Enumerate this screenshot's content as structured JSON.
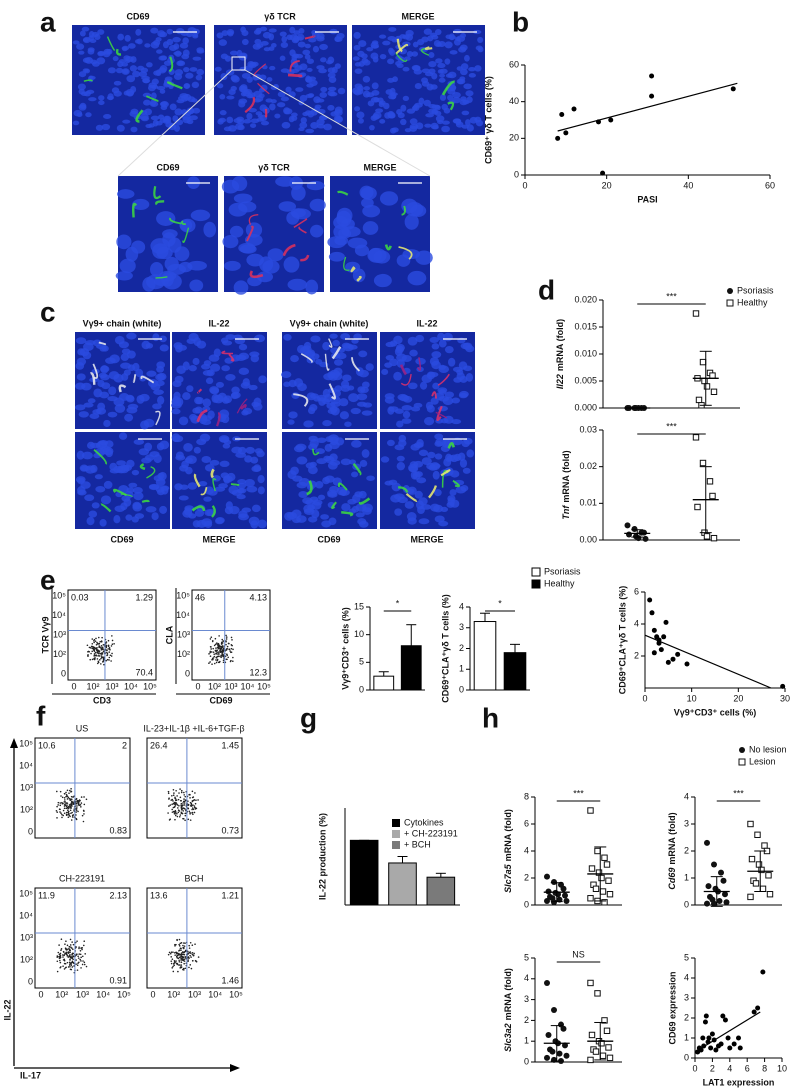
{
  "panel_labels": [
    "a",
    "b",
    "c",
    "d",
    "e",
    "f",
    "g",
    "h"
  ],
  "flow_ticks": [
    "0",
    "10²",
    "10³",
    "10⁴",
    "10⁵"
  ],
  "panel_a": {
    "top_captions": [
      {
        "text": "CD69",
        "color": "#1fbf1f"
      },
      {
        "text": "γδ TCR",
        "color": "#d8203a"
      },
      {
        "text": "MERGE",
        "color": "#111111"
      }
    ],
    "bottom_captions": [
      {
        "text": "CD69",
        "color": "#1fbf1f"
      },
      {
        "text": "γδ TCR",
        "color": "#d8203a"
      },
      {
        "text": "MERGE",
        "color": "#111111"
      }
    ]
  },
  "panel_b": {
    "type": "scatter",
    "x": [
      8,
      9,
      10,
      12,
      18,
      19,
      21,
      31,
      31,
      51
    ],
    "y": [
      20,
      33,
      23,
      36,
      29,
      1,
      30,
      54,
      43,
      47
    ],
    "xlim": [
      0,
      60
    ],
    "ylim": [
      0,
      60
    ],
    "xticks": [
      0,
      20,
      40,
      60
    ],
    "yticks": [
      0,
      20,
      40,
      60
    ],
    "x_label": "PASI",
    "y_label": "CD69⁺ γδ T cells (%)",
    "fit_line": {
      "x": [
        8,
        52
      ],
      "y": [
        24,
        50
      ]
    }
  },
  "panel_c": {
    "top_captions": [
      {
        "text": "Vγ9+ chain (white)",
        "color": "#111111"
      },
      {
        "text": "IL-22",
        "color": "#d8203a"
      },
      {
        "text": "Vγ9+ chain (white)",
        "color": "#111111"
      },
      {
        "text": "IL-22",
        "color": "#d8203a"
      }
    ],
    "bottom_captions": [
      {
        "text": "CD69",
        "color": "#1fbf1f"
      },
      {
        "text": "MERGE",
        "color": "#111111"
      },
      {
        "text": "CD69",
        "color": "#1fbf1f"
      },
      {
        "text": "MERGE",
        "color": "#111111"
      }
    ]
  },
  "panel_d": {
    "legend": [
      {
        "name": "Psoriasis",
        "marker": "circle"
      },
      {
        "name": "Healthy",
        "marker": "square"
      }
    ],
    "charts": [
      {
        "type": "dot",
        "y_label": {
          "gene": "Il22",
          "text": "mRNA (fold)"
        },
        "ylim": [
          0,
          0.02
        ],
        "yticks": [
          {
            "value": 0,
            "label": "0.000"
          },
          0.005,
          {
            "value": 0.01,
            "label": "0.010"
          },
          0.015,
          {
            "value": 0.02,
            "label": "0.020"
          }
        ],
        "annotation": "***",
        "series": [
          {
            "marker": "circle",
            "values": [
              0,
              0,
              0,
              0,
              0,
              0,
              0
            ],
            "mean": 0,
            "sd": 0
          },
          {
            "marker": "square",
            "values": [
              0.0175,
              0.0085,
              0.0065,
              0.006,
              0.0055,
              0.005,
              0.004,
              0.003,
              0.0015,
              0.0005
            ],
            "mean": 0.0055,
            "sd": 0.005
          }
        ]
      },
      {
        "type": "dot",
        "y_label": {
          "gene": "Tnf",
          "text": "mRNA (fold)"
        },
        "ylim": [
          0,
          0.03
        ],
        "yticks": [
          {
            "value": 0,
            "label": "0.00"
          },
          0.01,
          0.02,
          0.03
        ],
        "annotation": "***",
        "series": [
          {
            "marker": "circle",
            "values": [
              0.004,
              0.003,
              0.002,
              0.002,
              0.0015,
              0.001,
              0.0005,
              0.0003
            ],
            "mean": 0.0018,
            "sd": 0.001
          },
          {
            "marker": "square",
            "values": [
              0.028,
              0.021,
              0.016,
              0.012,
              0.009,
              0.002,
              0.001,
              0.0005
            ],
            "mean": 0.011,
            "sd": 0.009
          }
        ]
      }
    ]
  },
  "panel_e": {
    "flow_plots": [
      {
        "y_label": "TCR Vγ9",
        "x_label": "CD3",
        "quadrants": [
          0.03,
          1.29,
          70.4
        ]
      },
      {
        "y_label": "CLA",
        "x_label": "CD69",
        "quadrants": [
          46,
          4.13,
          12.3
        ]
      }
    ],
    "legend": [
      {
        "name": "Psoriasis",
        "color": "#ffffff"
      },
      {
        "name": "Healthy",
        "color": "#000000"
      }
    ],
    "charts": [
      {
        "type": "bar",
        "y_label": "Vγ9⁺CD3⁺ cells (%)",
        "ylim": [
          0,
          15
        ],
        "yticks": [
          0,
          5,
          10,
          15
        ],
        "annotation": "*",
        "bars": [
          {
            "value": 2.5,
            "error": 0.8,
            "color": "#ffffff"
          },
          {
            "value": 8,
            "error": 3.8,
            "color": "#000000"
          }
        ]
      },
      {
        "type": "bar",
        "y_label": "CD69⁺CLA⁺γδ T cells (%)",
        "ylim": [
          0,
          4
        ],
        "yticks": [
          0,
          1,
          2,
          3,
          4
        ],
        "annotation": "*",
        "bars": [
          {
            "value": 3.3,
            "error": 0.4,
            "color": "#ffffff"
          },
          {
            "value": 1.8,
            "error": 0.4,
            "color": "#000000"
          }
        ]
      },
      {
        "type": "scatter",
        "x": [
          1,
          1.5,
          2,
          2.5,
          3,
          3.5,
          4,
          4.5,
          5,
          6,
          7,
          9,
          29.5,
          2,
          3
        ],
        "y": [
          5.5,
          4.7,
          3.6,
          3.2,
          3,
          2.4,
          3.2,
          4.1,
          1.6,
          1.8,
          2.1,
          1.5,
          0.1,
          2.2,
          2.8
        ],
        "xlim": [
          0,
          30
        ],
        "ylim": [
          0,
          6
        ],
        "xticks": [
          0,
          10,
          20,
          30
        ],
        "yticks": [
          2,
          4,
          6
        ],
        "x_label": "Vγ9⁺CD3⁺ cells (%)",
        "y_label": "CD69⁺CLA⁺γδ T cells (%)",
        "fit_line": {
          "x": [
            0,
            27
          ],
          "y": [
            3.3,
            0
          ]
        }
      }
    ]
  },
  "panel_f": {
    "y_label": "IL-22",
    "x_label": "IL-17",
    "flow_plots": [
      {
        "title": "US",
        "quadrants": [
          10.6,
          2,
          0.83
        ]
      },
      {
        "title": "IL-23+IL-1β +IL-6+TGF-β",
        "quadrants": [
          26.4,
          1.45,
          0.73
        ]
      },
      {
        "title": "CH-223191",
        "quadrants": [
          11.9,
          2.13,
          0.91
        ]
      },
      {
        "title": "BCH",
        "quadrants": [
          13.6,
          1.21,
          1.46
        ]
      }
    ]
  },
  "panel_g": {
    "type": "bar",
    "y_label": "IL-22 production (%)",
    "ylim": [
      0,
      150
    ],
    "bars": [
      {
        "name": "Cytokines",
        "value": 100,
        "error": 0,
        "color": "#000000"
      },
      {
        "name": "+ CH-223191",
        "value": 65,
        "error": 10,
        "color": "#a9a9a9"
      },
      {
        "name": "+ BCH",
        "value": 43,
        "error": 6,
        "color": "#7a7a7a"
      }
    ]
  },
  "panel_h": {
    "legend": [
      {
        "name": "No lesion",
        "marker": "circle"
      },
      {
        "name": "Lesion",
        "marker": "square"
      }
    ],
    "charts": [
      {
        "type": "dot",
        "y_label": {
          "gene": "Slc7a5",
          "text": "mRNA (fold)"
        },
        "ylim": [
          0,
          8
        ],
        "yticks": [
          0,
          2,
          4,
          6,
          8
        ],
        "annotation": "***",
        "series": [
          {
            "marker": "circle",
            "values": [
              2.1,
              1.7,
              1.5,
              1.2,
              1,
              0.9,
              0.8,
              0.7,
              0.6,
              0.5,
              0.4,
              0.3,
              0.3,
              0.2
            ],
            "mean": 0.95,
            "sd": 0.7
          },
          {
            "marker": "square",
            "values": [
              7,
              4,
              3.5,
              3,
              2.7,
              2.4,
              2,
              1.8,
              1.5,
              1.2,
              1,
              0.8,
              0.5,
              0.3,
              0.2
            ],
            "mean": 2.3,
            "sd": 2
          }
        ]
      },
      {
        "type": "dot",
        "y_label": {
          "gene": "Cd69",
          "text": "mRNA (fold)"
        },
        "ylim": [
          0,
          4
        ],
        "yticks": [
          0,
          1,
          2,
          3,
          4
        ],
        "annotation": "***",
        "series": [
          {
            "marker": "circle",
            "values": [
              2.3,
              1.5,
              1.2,
              0.9,
              0.7,
              0.6,
              0.5,
              0.4,
              0.3,
              0.2,
              0.15,
              0.1,
              0.05,
              0.05
            ],
            "mean": 0.5,
            "sd": 0.55
          },
          {
            "marker": "square",
            "values": [
              3,
              2.6,
              2.2,
              2,
              1.7,
              1.5,
              1.3,
              1.1,
              0.9,
              0.8,
              0.6,
              0.4,
              0.3
            ],
            "mean": 1.25,
            "sd": 0.75
          }
        ]
      },
      {
        "type": "dot",
        "y_label": {
          "gene": "Slc3a2",
          "text": "mRNA (fold)"
        },
        "ylim": [
          0,
          5
        ],
        "yticks": [
          0,
          1,
          2,
          3,
          4,
          5
        ],
        "annotation": "NS",
        "series": [
          {
            "marker": "circle",
            "values": [
              3.8,
              2.5,
              1.8,
              1.6,
              1.3,
              1,
              0.9,
              0.8,
              0.6,
              0.5,
              0.4,
              0.3,
              0.2,
              0.1,
              0.05
            ],
            "mean": 0.9,
            "sd": 0.85
          },
          {
            "marker": "square",
            "values": [
              3.8,
              3.3,
              2,
              1.5,
              1.3,
              1,
              0.9,
              0.7,
              0.6,
              0.5,
              0.3,
              0.2,
              0.1
            ],
            "mean": 1,
            "sd": 0.9
          }
        ]
      },
      {
        "type": "scatter",
        "x": [
          0.3,
          0.5,
          0.7,
          0.9,
          1,
          1.2,
          1.3,
          1.5,
          1.6,
          1.8,
          2,
          2.2,
          2.4,
          2.7,
          3,
          3.2,
          3.5,
          3.8,
          4,
          4.5,
          5,
          5.2,
          6.8,
          7.2,
          7.8
        ],
        "y": [
          0.3,
          0.5,
          0.4,
          1,
          0.6,
          1.8,
          2.1,
          0.8,
          1,
          0.5,
          1.2,
          0.9,
          0.4,
          0.6,
          0.7,
          2.1,
          1.9,
          1,
          0.5,
          0.7,
          1,
          0.5,
          2.3,
          2.5,
          4.3
        ],
        "xlim": [
          0,
          10
        ],
        "ylim": [
          0,
          5
        ],
        "xticks": [
          0,
          2,
          4,
          6,
          8,
          10
        ],
        "yticks": [
          0,
          1,
          2,
          3,
          4,
          5
        ],
        "x_label": "LAT1 expression",
        "y_label": "CD69 expression",
        "fit_line": {
          "x": [
            0,
            7.5
          ],
          "y": [
            0.3,
            2.3
          ]
        }
      }
    ]
  }
}
